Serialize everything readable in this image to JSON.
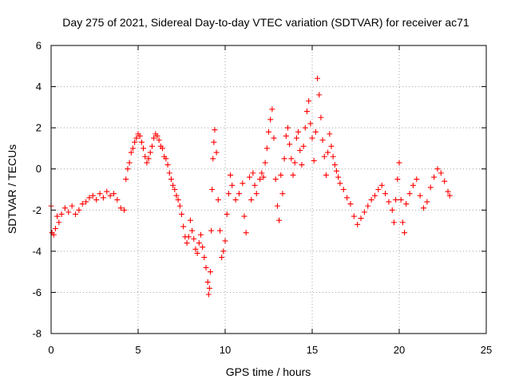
{
  "chart_data": {
    "type": "scatter",
    "title": "Day 275 of 2021, Sidereal Day-to-day VTEC variation (SDTVAR) for receiver ac71",
    "xlabel": "GPS time / hours",
    "ylabel": "SDTVAR / TECUs",
    "xlim": [
      0,
      25
    ],
    "ylim": [
      -8,
      6
    ],
    "xticks": [
      "0",
      "5",
      "10",
      "15",
      "20",
      "25"
    ],
    "yticks": [
      "-8",
      "-6",
      "-4",
      "-2",
      "0",
      "2",
      "4",
      "6"
    ],
    "grid": true,
    "marker": "+",
    "color": "#ff0000",
    "series": [
      {
        "name": "ac71",
        "points": [
          [
            0.0,
            -1.8
          ],
          [
            0.05,
            -3.1
          ],
          [
            0.15,
            -3.2
          ],
          [
            0.25,
            -2.9
          ],
          [
            0.35,
            -2.3
          ],
          [
            0.45,
            -2.6
          ],
          [
            0.6,
            -2.2
          ],
          [
            0.8,
            -1.9
          ],
          [
            1.0,
            -2.1
          ],
          [
            1.2,
            -1.8
          ],
          [
            1.4,
            -2.2
          ],
          [
            1.6,
            -2.0
          ],
          [
            1.8,
            -1.7
          ],
          [
            2.0,
            -1.6
          ],
          [
            2.2,
            -1.4
          ],
          [
            2.4,
            -1.3
          ],
          [
            2.6,
            -1.5
          ],
          [
            2.8,
            -1.2
          ],
          [
            3.0,
            -1.4
          ],
          [
            3.2,
            -1.1
          ],
          [
            3.4,
            -1.3
          ],
          [
            3.6,
            -1.2
          ],
          [
            3.8,
            -1.5
          ],
          [
            4.0,
            -1.9
          ],
          [
            4.2,
            -2.0
          ],
          [
            4.3,
            -0.5
          ],
          [
            4.4,
            0.0
          ],
          [
            4.5,
            0.3
          ],
          [
            4.6,
            0.8
          ],
          [
            4.7,
            1.0
          ],
          [
            4.8,
            1.3
          ],
          [
            4.9,
            1.5
          ],
          [
            5.0,
            1.7
          ],
          [
            5.1,
            1.6
          ],
          [
            5.2,
            1.3
          ],
          [
            5.3,
            1.0
          ],
          [
            5.4,
            0.6
          ],
          [
            5.5,
            0.3
          ],
          [
            5.6,
            0.5
          ],
          [
            5.7,
            0.8
          ],
          [
            5.8,
            1.1
          ],
          [
            5.9,
            1.5
          ],
          [
            6.0,
            1.7
          ],
          [
            6.1,
            1.6
          ],
          [
            6.2,
            1.4
          ],
          [
            6.3,
            1.1
          ],
          [
            6.4,
            1.0
          ],
          [
            6.5,
            0.6
          ],
          [
            6.6,
            0.5
          ],
          [
            6.7,
            0.2
          ],
          [
            6.8,
            -0.2
          ],
          [
            6.9,
            -0.5
          ],
          [
            7.0,
            -0.8
          ],
          [
            7.1,
            -1.0
          ],
          [
            7.2,
            -1.3
          ],
          [
            7.3,
            -1.5
          ],
          [
            7.4,
            -1.8
          ],
          [
            7.5,
            -2.2
          ],
          [
            7.6,
            -2.8
          ],
          [
            7.7,
            -3.3
          ],
          [
            7.8,
            -3.6
          ],
          [
            7.9,
            -3.3
          ],
          [
            8.0,
            -2.5
          ],
          [
            8.1,
            -3.0
          ],
          [
            8.2,
            -3.4
          ],
          [
            8.3,
            -3.9
          ],
          [
            8.4,
            -4.1
          ],
          [
            8.5,
            -3.6
          ],
          [
            8.6,
            -3.2
          ],
          [
            8.7,
            -3.8
          ],
          [
            8.8,
            -4.3
          ],
          [
            8.9,
            -4.8
          ],
          [
            9.0,
            -5.5
          ],
          [
            9.05,
            -6.1
          ],
          [
            9.1,
            -5.8
          ],
          [
            9.15,
            -5.0
          ],
          [
            9.2,
            -3.0
          ],
          [
            9.25,
            -1.0
          ],
          [
            9.3,
            0.5
          ],
          [
            9.35,
            1.3
          ],
          [
            9.4,
            1.9
          ],
          [
            9.5,
            0.8
          ],
          [
            9.6,
            -1.5
          ],
          [
            9.7,
            -3.0
          ],
          [
            9.8,
            -4.3
          ],
          [
            9.9,
            -4.0
          ],
          [
            10.0,
            -3.5
          ],
          [
            10.1,
            -2.2
          ],
          [
            10.2,
            -1.2
          ],
          [
            10.3,
            -0.3
          ],
          [
            10.4,
            -0.8
          ],
          [
            10.6,
            -1.5
          ],
          [
            10.8,
            -1.2
          ],
          [
            11.0,
            -0.7
          ],
          [
            11.1,
            -2.3
          ],
          [
            11.2,
            -3.1
          ],
          [
            11.4,
            -0.4
          ],
          [
            11.5,
            -1.5
          ],
          [
            11.6,
            -0.2
          ],
          [
            11.7,
            -0.8
          ],
          [
            11.8,
            -1.2
          ],
          [
            12.0,
            -0.5
          ],
          [
            12.1,
            -0.2
          ],
          [
            12.2,
            -0.4
          ],
          [
            12.3,
            0.3
          ],
          [
            12.4,
            1.0
          ],
          [
            12.5,
            1.8
          ],
          [
            12.6,
            2.4
          ],
          [
            12.7,
            2.9
          ],
          [
            12.8,
            1.5
          ],
          [
            12.9,
            -0.5
          ],
          [
            13.0,
            -1.8
          ],
          [
            13.1,
            -2.5
          ],
          [
            13.2,
            -0.3
          ],
          [
            13.3,
            -1.2
          ],
          [
            13.4,
            0.5
          ],
          [
            13.5,
            1.6
          ],
          [
            13.6,
            2.0
          ],
          [
            13.7,
            1.2
          ],
          [
            13.8,
            0.5
          ],
          [
            13.9,
            -0.3
          ],
          [
            14.0,
            0.3
          ],
          [
            14.1,
            1.5
          ],
          [
            14.2,
            1.8
          ],
          [
            14.3,
            0.9
          ],
          [
            14.4,
            0.2
          ],
          [
            14.5,
            1.1
          ],
          [
            14.6,
            2.0
          ],
          [
            14.7,
            2.8
          ],
          [
            14.8,
            3.3
          ],
          [
            14.9,
            2.2
          ],
          [
            15.0,
            1.5
          ],
          [
            15.1,
            0.4
          ],
          [
            15.2,
            1.8
          ],
          [
            15.3,
            4.4
          ],
          [
            15.4,
            3.6
          ],
          [
            15.5,
            2.5
          ],
          [
            15.6,
            1.4
          ],
          [
            15.7,
            0.6
          ],
          [
            15.8,
            -0.3
          ],
          [
            15.9,
            0.8
          ],
          [
            16.0,
            1.7
          ],
          [
            16.1,
            1.1
          ],
          [
            16.2,
            0.6
          ],
          [
            16.3,
            0.2
          ],
          [
            16.4,
            -0.1
          ],
          [
            16.5,
            -0.4
          ],
          [
            16.6,
            -0.7
          ],
          [
            16.8,
            -1.0
          ],
          [
            17.0,
            -1.4
          ],
          [
            17.2,
            -1.7
          ],
          [
            17.4,
            -2.3
          ],
          [
            17.6,
            -2.7
          ],
          [
            17.8,
            -2.4
          ],
          [
            18.0,
            -2.1
          ],
          [
            18.2,
            -1.8
          ],
          [
            18.4,
            -1.5
          ],
          [
            18.6,
            -1.3
          ],
          [
            18.8,
            -1.0
          ],
          [
            19.0,
            -0.8
          ],
          [
            19.2,
            -1.2
          ],
          [
            19.4,
            -1.6
          ],
          [
            19.6,
            -2.0
          ],
          [
            19.7,
            -2.6
          ],
          [
            19.8,
            -1.5
          ],
          [
            19.9,
            -0.5
          ],
          [
            20.0,
            0.3
          ],
          [
            20.1,
            -1.5
          ],
          [
            20.2,
            -2.6
          ],
          [
            20.3,
            -3.1
          ],
          [
            20.4,
            -1.7
          ],
          [
            20.6,
            -1.2
          ],
          [
            20.8,
            -0.8
          ],
          [
            21.0,
            -0.5
          ],
          [
            21.2,
            -1.3
          ],
          [
            21.4,
            -1.9
          ],
          [
            21.6,
            -1.6
          ],
          [
            21.8,
            -0.9
          ],
          [
            22.0,
            -0.4
          ],
          [
            22.2,
            0.0
          ],
          [
            22.4,
            -0.2
          ],
          [
            22.6,
            -0.6
          ],
          [
            22.8,
            -1.1
          ],
          [
            22.9,
            -1.3
          ]
        ]
      }
    ]
  }
}
